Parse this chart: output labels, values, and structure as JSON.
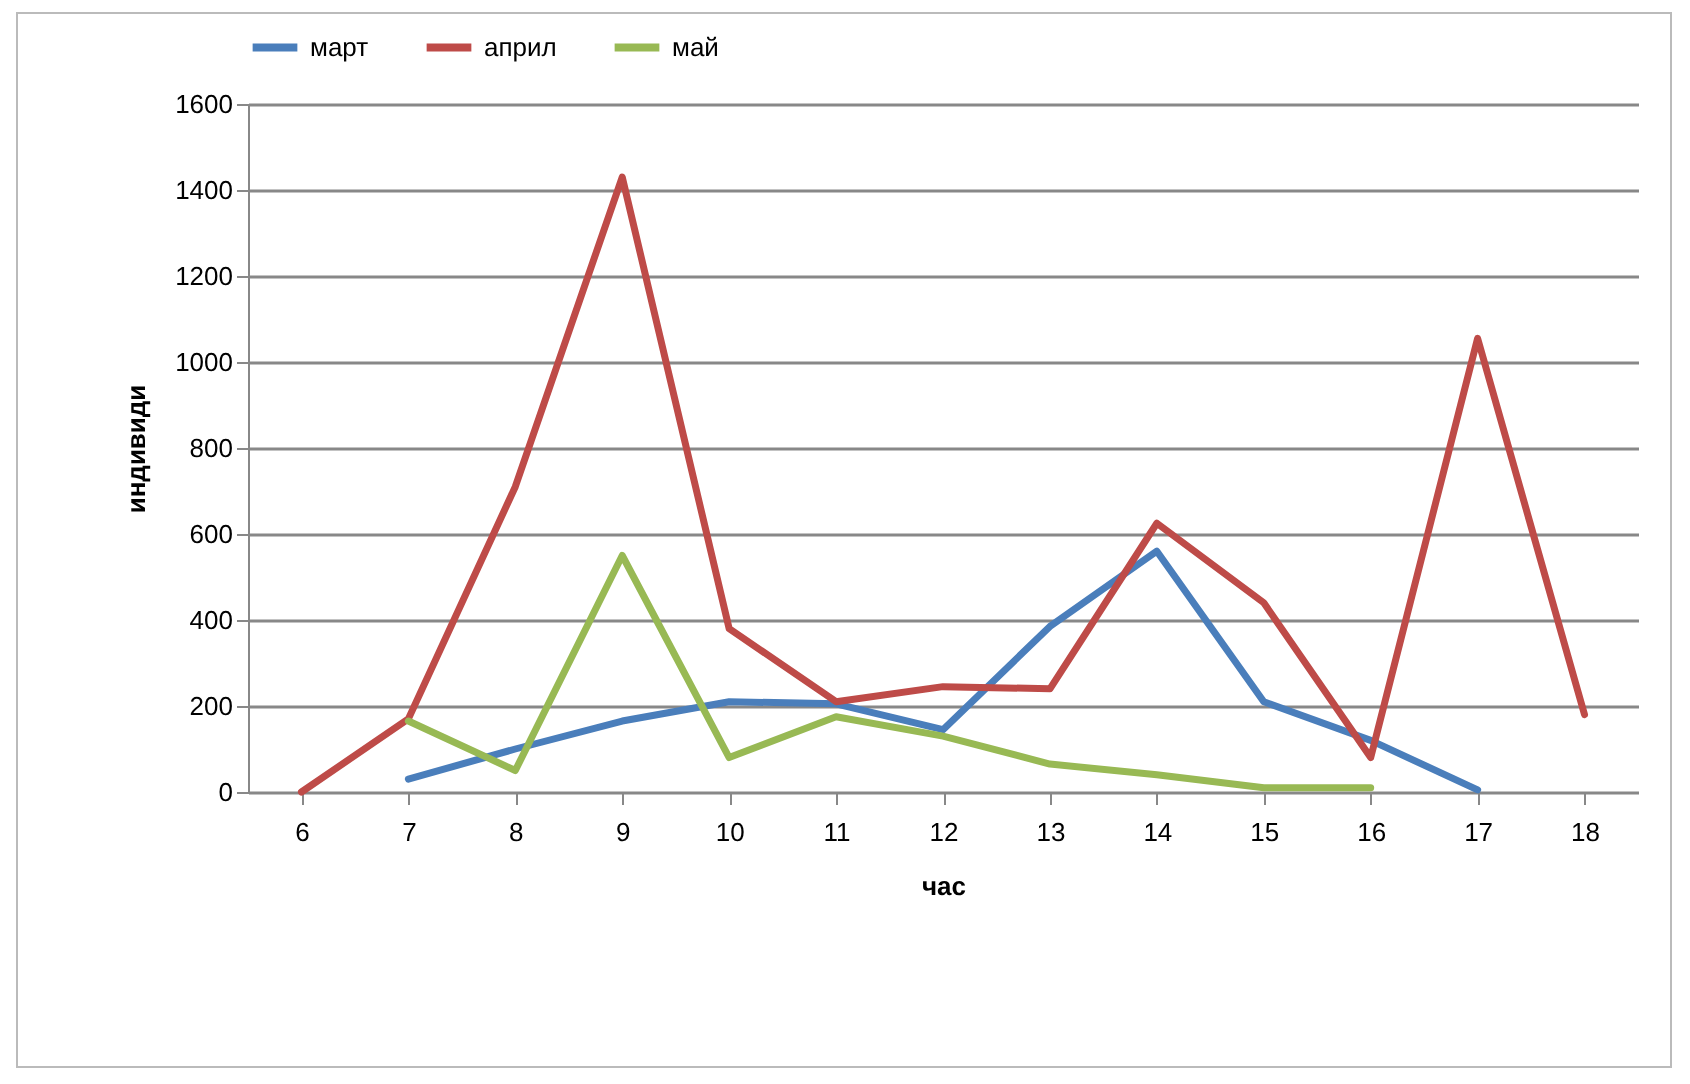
{
  "chart_data": {
    "type": "line",
    "xlabel": "час",
    "ylabel": "индивиди",
    "categories": [
      "6",
      "7",
      "8",
      "9",
      "10",
      "11",
      "12",
      "13",
      "14",
      "15",
      "16",
      "17",
      "18"
    ],
    "series": [
      {
        "name": "март",
        "color": "#4a7ebb",
        "values": [
          null,
          30,
          100,
          165,
          210,
          205,
          145,
          385,
          560,
          210,
          120,
          5,
          null
        ]
      },
      {
        "name": "април",
        "color": "#be4b48",
        "values": [
          0,
          170,
          710,
          1430,
          380,
          210,
          245,
          240,
          625,
          440,
          80,
          1055,
          180
        ]
      },
      {
        "name": "май",
        "color": "#98b954",
        "values": [
          null,
          165,
          50,
          550,
          80,
          175,
          130,
          65,
          40,
          10,
          10,
          null,
          null
        ]
      }
    ],
    "ylim": [
      0,
      1600
    ],
    "yticks": [
      0,
      200,
      400,
      600,
      800,
      1000,
      1200,
      1400,
      1600
    ],
    "grid": "y",
    "legend": "top",
    "marker": "none",
    "line_style": "solid"
  }
}
